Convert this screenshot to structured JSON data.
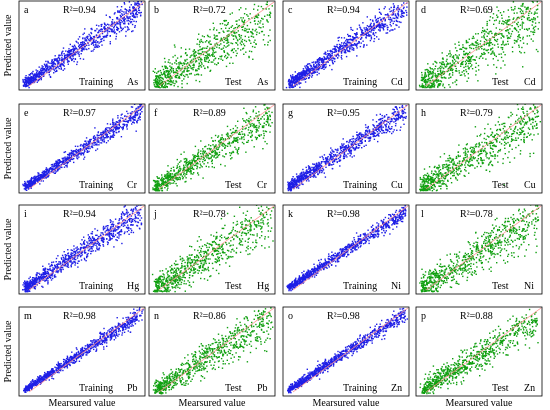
{
  "figure": {
    "ylabel": "Predicted value",
    "xlabel": "Mearsured value"
  },
  "colors": {
    "train": "#1f1fe6",
    "test": "#11a011",
    "identity_line": "#ff8a8a",
    "frame": "#000000"
  },
  "chart_data": [
    {
      "type": "scatter",
      "panel": "a",
      "r2_label": "R²=0.94",
      "r2": 0.94,
      "set": "Training",
      "element": "As"
    },
    {
      "type": "scatter",
      "panel": "b",
      "r2_label": "R²=0.72",
      "r2": 0.72,
      "set": "Test",
      "element": "As"
    },
    {
      "type": "scatter",
      "panel": "c",
      "r2_label": "R²=0.94",
      "r2": 0.94,
      "set": "Training",
      "element": "Cd"
    },
    {
      "type": "scatter",
      "panel": "d",
      "r2_label": "R²=0.69",
      "r2": 0.69,
      "set": "Test",
      "element": "Cd"
    },
    {
      "type": "scatter",
      "panel": "e",
      "r2_label": "R²=0.97",
      "r2": 0.97,
      "set": "Training",
      "element": "Cr"
    },
    {
      "type": "scatter",
      "panel": "f",
      "r2_label": "R²=0.89",
      "r2": 0.89,
      "set": "Test",
      "element": "Cr"
    },
    {
      "type": "scatter",
      "panel": "g",
      "r2_label": "R²=0.95",
      "r2": 0.95,
      "set": "Training",
      "element": "Cu"
    },
    {
      "type": "scatter",
      "panel": "h",
      "r2_label": "R²=0.79",
      "r2": 0.79,
      "set": "Test",
      "element": "Cu"
    },
    {
      "type": "scatter",
      "panel": "i",
      "r2_label": "R²=0.94",
      "r2": 0.94,
      "set": "Training",
      "element": "Hg"
    },
    {
      "type": "scatter",
      "panel": "j",
      "r2_label": "R²=0.78",
      "r2": 0.78,
      "set": "Test",
      "element": "Hg"
    },
    {
      "type": "scatter",
      "panel": "k",
      "r2_label": "R²=0.98",
      "r2": 0.98,
      "set": "Training",
      "element": "Ni"
    },
    {
      "type": "scatter",
      "panel": "l",
      "r2_label": "R²=0.78",
      "r2": 0.78,
      "set": "Test",
      "element": "Ni"
    },
    {
      "type": "scatter",
      "panel": "m",
      "r2_label": "R²=0.98",
      "r2": 0.98,
      "set": "Training",
      "element": "Pb"
    },
    {
      "type": "scatter",
      "panel": "n",
      "r2_label": "R²=0.86",
      "r2": 0.86,
      "set": "Test",
      "element": "Pb"
    },
    {
      "type": "scatter",
      "panel": "o",
      "r2_label": "R²=0.98",
      "r2": 0.98,
      "set": "Training",
      "element": "Zn"
    },
    {
      "type": "scatter",
      "panel": "p",
      "r2_label": "R²=0.88",
      "r2": 0.88,
      "set": "Test",
      "element": "Zn"
    }
  ]
}
